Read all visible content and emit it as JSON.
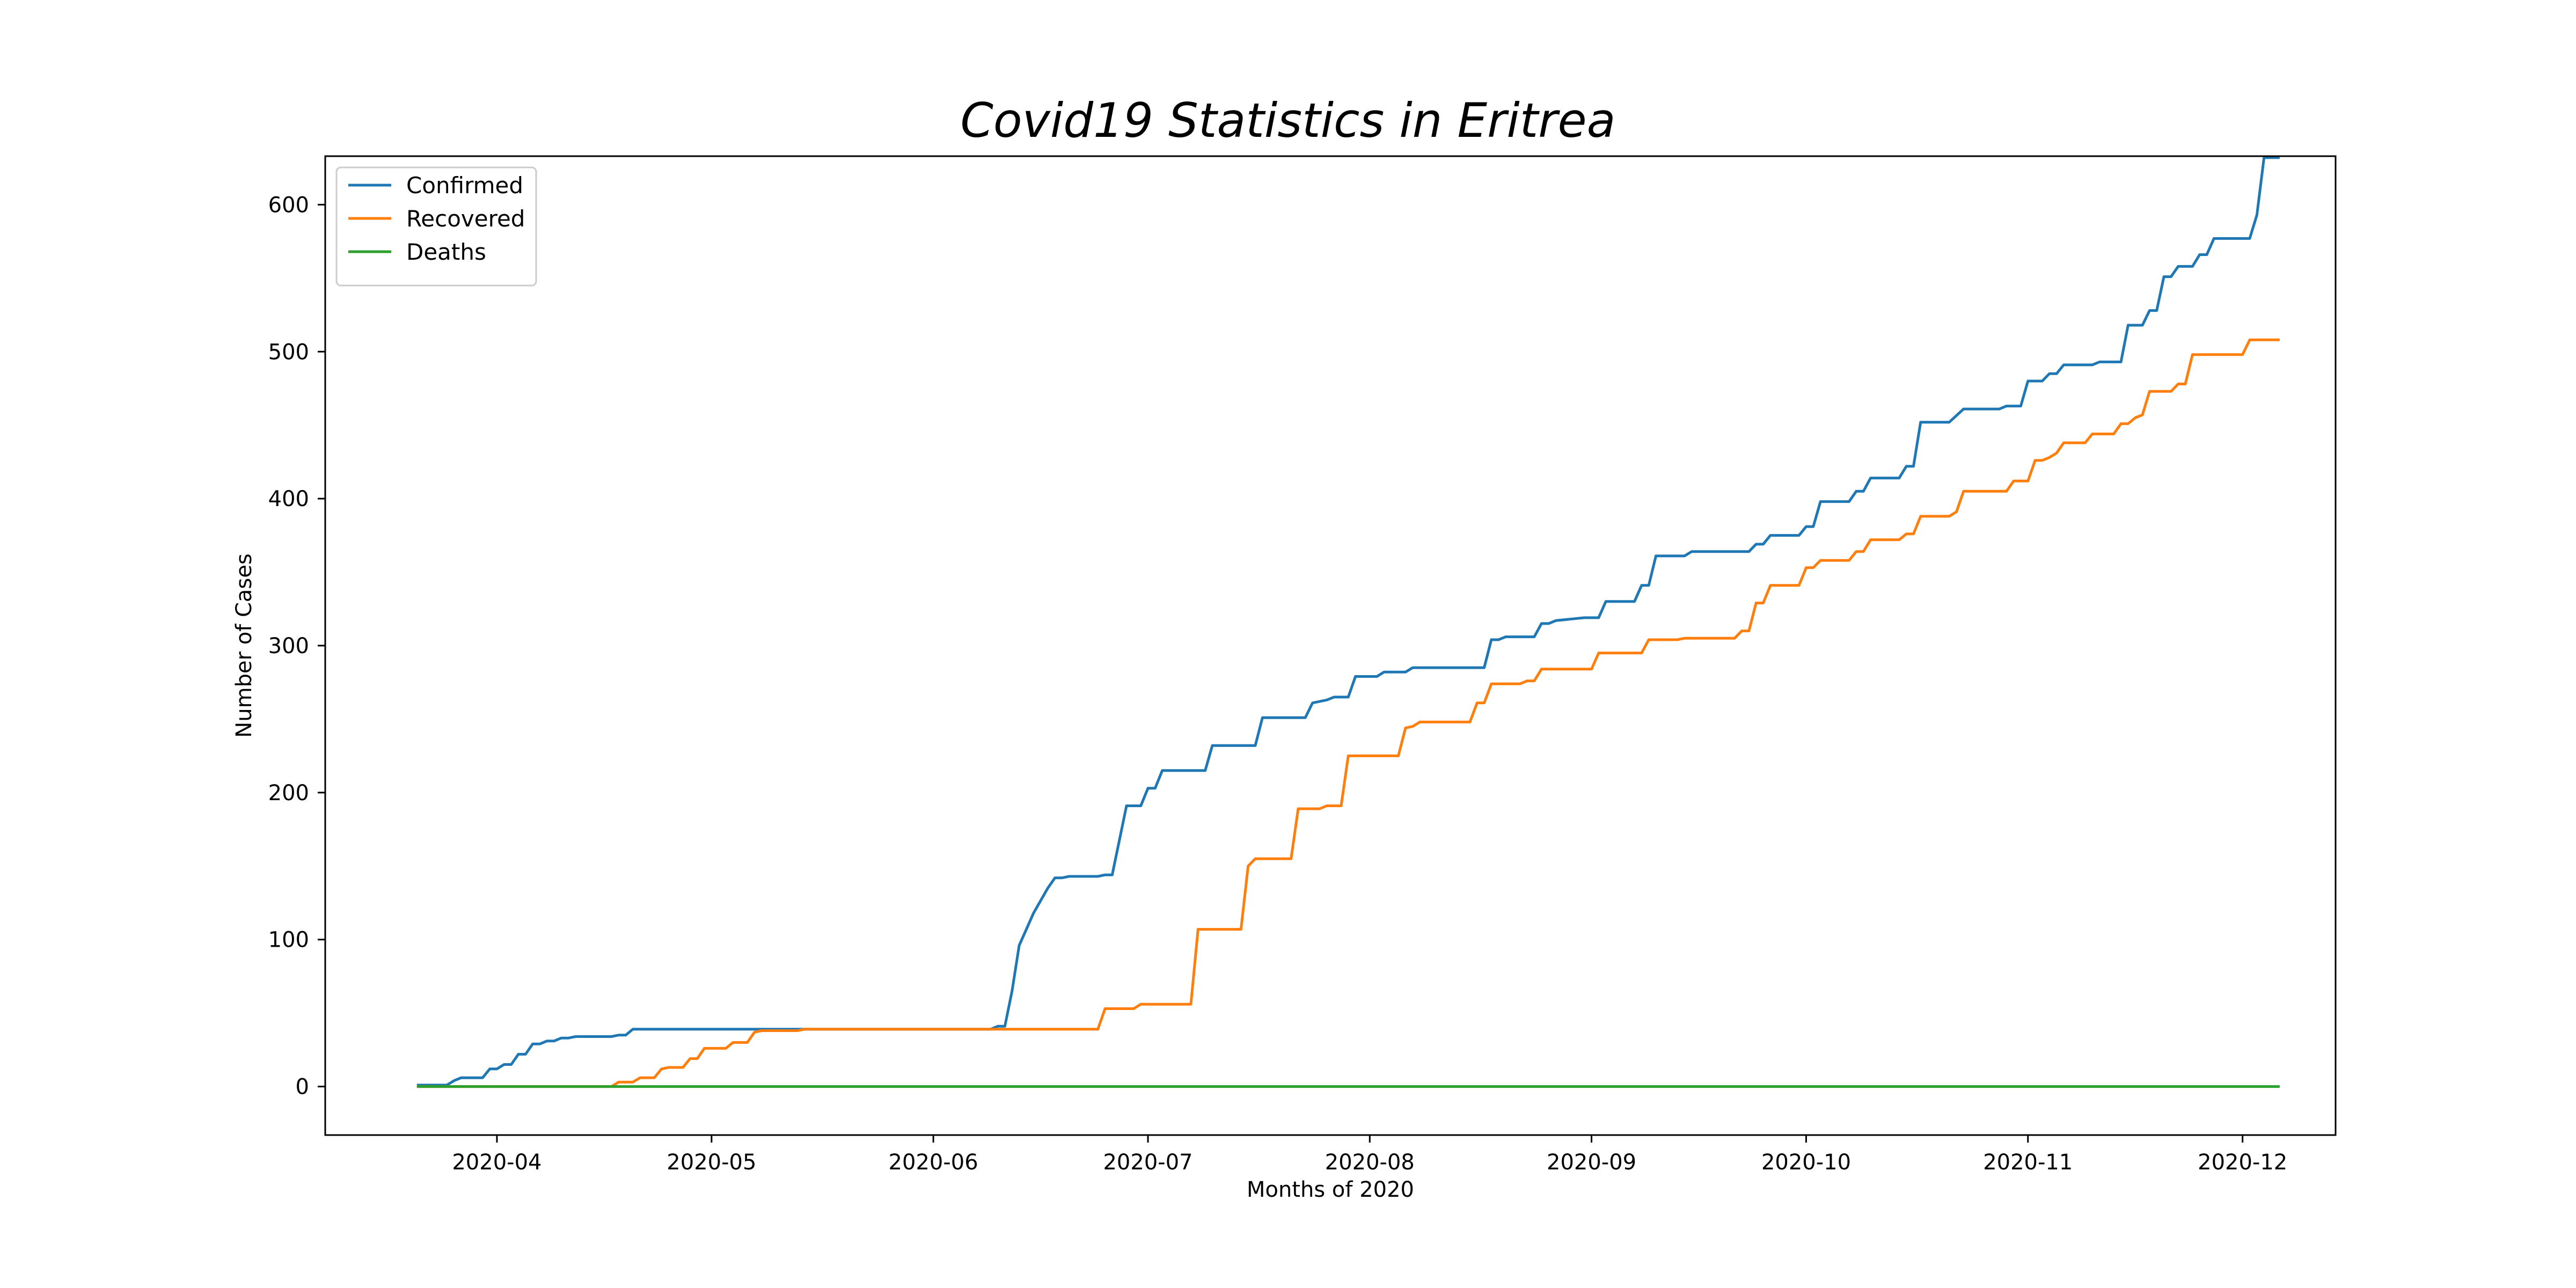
{
  "chart_data": {
    "type": "line",
    "title": "Covid19 Statistics in Eritrea",
    "xlabel": "Months of 2020",
    "ylabel": "Number of Cases",
    "ylim": [
      -33,
      633
    ],
    "xlim": [
      "2020-03-08",
      "2020-12-14"
    ],
    "grid": false,
    "legend_position": "top-left",
    "x_ticks": [
      {
        "date": "2020-04-01",
        "label": "2020-04"
      },
      {
        "date": "2020-05-01",
        "label": "2020-05"
      },
      {
        "date": "2020-06-01",
        "label": "2020-06"
      },
      {
        "date": "2020-07-01",
        "label": "2020-07"
      },
      {
        "date": "2020-08-01",
        "label": "2020-08"
      },
      {
        "date": "2020-09-01",
        "label": "2020-09"
      },
      {
        "date": "2020-10-01",
        "label": "2020-10"
      },
      {
        "date": "2020-11-01",
        "label": "2020-11"
      },
      {
        "date": "2020-12-01",
        "label": "2020-12"
      }
    ],
    "y_ticks": [
      {
        "value": 0,
        "label": "0"
      },
      {
        "value": 100,
        "label": "100"
      },
      {
        "value": 200,
        "label": "200"
      },
      {
        "value": 300,
        "label": "300"
      },
      {
        "value": 400,
        "label": "400"
      },
      {
        "value": 500,
        "label": "500"
      },
      {
        "value": 600,
        "label": "600"
      }
    ],
    "series": [
      {
        "name": "Confirmed",
        "color": "#1f77b4",
        "points": [
          [
            "2020-03-21",
            1
          ],
          [
            "2020-03-24",
            1
          ],
          [
            "2020-03-25",
            1
          ],
          [
            "2020-03-26",
            4
          ],
          [
            "2020-03-27",
            6
          ],
          [
            "2020-03-30",
            6
          ],
          [
            "2020-03-31",
            12
          ],
          [
            "2020-04-01",
            12
          ],
          [
            "2020-04-02",
            15
          ],
          [
            "2020-04-03",
            15
          ],
          [
            "2020-04-04",
            22
          ],
          [
            "2020-04-05",
            22
          ],
          [
            "2020-04-06",
            29
          ],
          [
            "2020-04-07",
            29
          ],
          [
            "2020-04-08",
            31
          ],
          [
            "2020-04-09",
            31
          ],
          [
            "2020-04-10",
            33
          ],
          [
            "2020-04-11",
            33
          ],
          [
            "2020-04-12",
            34
          ],
          [
            "2020-04-17",
            34
          ],
          [
            "2020-04-18",
            35
          ],
          [
            "2020-04-19",
            35
          ],
          [
            "2020-04-20",
            39
          ],
          [
            "2020-06-09",
            39
          ],
          [
            "2020-06-10",
            41
          ],
          [
            "2020-06-11",
            41
          ],
          [
            "2020-06-12",
            65
          ],
          [
            "2020-06-13",
            96
          ],
          [
            "2020-06-15",
            118
          ],
          [
            "2020-06-17",
            135
          ],
          [
            "2020-06-18",
            142
          ],
          [
            "2020-06-19",
            142
          ],
          [
            "2020-06-20",
            143
          ],
          [
            "2020-06-24",
            143
          ],
          [
            "2020-06-25",
            144
          ],
          [
            "2020-06-26",
            144
          ],
          [
            "2020-06-28",
            191
          ],
          [
            "2020-06-30",
            191
          ],
          [
            "2020-07-01",
            203
          ],
          [
            "2020-07-02",
            203
          ],
          [
            "2020-07-03",
            215
          ],
          [
            "2020-07-09",
            215
          ],
          [
            "2020-07-10",
            232
          ],
          [
            "2020-07-16",
            232
          ],
          [
            "2020-07-17",
            251
          ],
          [
            "2020-07-23",
            251
          ],
          [
            "2020-07-24",
            261
          ],
          [
            "2020-07-25",
            262
          ],
          [
            "2020-07-26",
            263
          ],
          [
            "2020-07-27",
            265
          ],
          [
            "2020-07-29",
            265
          ],
          [
            "2020-07-30",
            279
          ],
          [
            "2020-08-02",
            279
          ],
          [
            "2020-08-03",
            282
          ],
          [
            "2020-08-06",
            282
          ],
          [
            "2020-08-07",
            285
          ],
          [
            "2020-08-17",
            285
          ],
          [
            "2020-08-18",
            304
          ],
          [
            "2020-08-19",
            304
          ],
          [
            "2020-08-20",
            306
          ],
          [
            "2020-08-24",
            306
          ],
          [
            "2020-08-25",
            315
          ],
          [
            "2020-08-26",
            315
          ],
          [
            "2020-08-27",
            317
          ],
          [
            "2020-08-29",
            318
          ],
          [
            "2020-08-31",
            319
          ],
          [
            "2020-09-02",
            319
          ],
          [
            "2020-09-03",
            330
          ],
          [
            "2020-09-07",
            330
          ],
          [
            "2020-09-08",
            341
          ],
          [
            "2020-09-09",
            341
          ],
          [
            "2020-09-10",
            361
          ],
          [
            "2020-09-14",
            361
          ],
          [
            "2020-09-15",
            364
          ],
          [
            "2020-09-23",
            364
          ],
          [
            "2020-09-24",
            369
          ],
          [
            "2020-09-25",
            369
          ],
          [
            "2020-09-26",
            375
          ],
          [
            "2020-09-30",
            375
          ],
          [
            "2020-10-01",
            381
          ],
          [
            "2020-10-02",
            381
          ],
          [
            "2020-10-03",
            398
          ],
          [
            "2020-10-07",
            398
          ],
          [
            "2020-10-08",
            405
          ],
          [
            "2020-10-09",
            405
          ],
          [
            "2020-10-10",
            414
          ],
          [
            "2020-10-14",
            414
          ],
          [
            "2020-10-15",
            422
          ],
          [
            "2020-10-16",
            422
          ],
          [
            "2020-10-17",
            452
          ],
          [
            "2020-10-21",
            452
          ],
          [
            "2020-10-23",
            461
          ],
          [
            "2020-10-28",
            461
          ],
          [
            "2020-10-29",
            463
          ],
          [
            "2020-10-31",
            463
          ],
          [
            "2020-11-01",
            480
          ],
          [
            "2020-11-03",
            480
          ],
          [
            "2020-11-04",
            485
          ],
          [
            "2020-11-05",
            485
          ],
          [
            "2020-11-06",
            491
          ],
          [
            "2020-11-10",
            491
          ],
          [
            "2020-11-11",
            493
          ],
          [
            "2020-11-14",
            493
          ],
          [
            "2020-11-15",
            518
          ],
          [
            "2020-11-17",
            518
          ],
          [
            "2020-11-18",
            528
          ],
          [
            "2020-11-19",
            528
          ],
          [
            "2020-11-20",
            551
          ],
          [
            "2020-11-21",
            551
          ],
          [
            "2020-11-22",
            558
          ],
          [
            "2020-11-24",
            558
          ],
          [
            "2020-11-25",
            566
          ],
          [
            "2020-11-26",
            566
          ],
          [
            "2020-11-27",
            577
          ],
          [
            "2020-12-02",
            577
          ],
          [
            "2020-12-03",
            593
          ],
          [
            "2020-12-04",
            632
          ],
          [
            "2020-12-06",
            632
          ]
        ]
      },
      {
        "name": "Recovered",
        "color": "#ff7f0e",
        "points": [
          [
            "2020-03-21",
            0
          ],
          [
            "2020-04-17",
            0
          ],
          [
            "2020-04-18",
            3
          ],
          [
            "2020-04-20",
            3
          ],
          [
            "2020-04-21",
            6
          ],
          [
            "2020-04-23",
            6
          ],
          [
            "2020-04-24",
            12
          ],
          [
            "2020-04-25",
            13
          ],
          [
            "2020-04-27",
            13
          ],
          [
            "2020-04-28",
            19
          ],
          [
            "2020-04-29",
            19
          ],
          [
            "2020-04-30",
            26
          ],
          [
            "2020-05-03",
            26
          ],
          [
            "2020-05-04",
            30
          ],
          [
            "2020-05-06",
            30
          ],
          [
            "2020-05-07",
            37
          ],
          [
            "2020-05-08",
            38
          ],
          [
            "2020-05-13",
            38
          ],
          [
            "2020-05-14",
            39
          ],
          [
            "2020-06-24",
            39
          ],
          [
            "2020-06-25",
            53
          ],
          [
            "2020-06-29",
            53
          ],
          [
            "2020-06-30",
            56
          ],
          [
            "2020-07-07",
            56
          ],
          [
            "2020-07-08",
            107
          ],
          [
            "2020-07-14",
            107
          ],
          [
            "2020-07-15",
            150
          ],
          [
            "2020-07-16",
            155
          ],
          [
            "2020-07-21",
            155
          ],
          [
            "2020-07-22",
            189
          ],
          [
            "2020-07-25",
            189
          ],
          [
            "2020-07-26",
            191
          ],
          [
            "2020-07-28",
            191
          ],
          [
            "2020-07-29",
            225
          ],
          [
            "2020-08-05",
            225
          ],
          [
            "2020-08-06",
            244
          ],
          [
            "2020-08-07",
            245
          ],
          [
            "2020-08-08",
            248
          ],
          [
            "2020-08-15",
            248
          ],
          [
            "2020-08-16",
            261
          ],
          [
            "2020-08-17",
            261
          ],
          [
            "2020-08-18",
            274
          ],
          [
            "2020-08-22",
            274
          ],
          [
            "2020-08-23",
            276
          ],
          [
            "2020-08-24",
            276
          ],
          [
            "2020-08-25",
            284
          ],
          [
            "2020-09-01",
            284
          ],
          [
            "2020-09-02",
            295
          ],
          [
            "2020-09-08",
            295
          ],
          [
            "2020-09-09",
            304
          ],
          [
            "2020-09-13",
            304
          ],
          [
            "2020-09-14",
            305
          ],
          [
            "2020-09-21",
            305
          ],
          [
            "2020-09-22",
            310
          ],
          [
            "2020-09-23",
            310
          ],
          [
            "2020-09-24",
            329
          ],
          [
            "2020-09-25",
            329
          ],
          [
            "2020-09-26",
            341
          ],
          [
            "2020-09-30",
            341
          ],
          [
            "2020-10-01",
            353
          ],
          [
            "2020-10-02",
            353
          ],
          [
            "2020-10-03",
            358
          ],
          [
            "2020-10-07",
            358
          ],
          [
            "2020-10-08",
            364
          ],
          [
            "2020-10-09",
            364
          ],
          [
            "2020-10-10",
            372
          ],
          [
            "2020-10-14",
            372
          ],
          [
            "2020-10-15",
            376
          ],
          [
            "2020-10-16",
            376
          ],
          [
            "2020-10-17",
            388
          ],
          [
            "2020-10-21",
            388
          ],
          [
            "2020-10-22",
            391
          ],
          [
            "2020-10-23",
            405
          ],
          [
            "2020-10-29",
            405
          ],
          [
            "2020-10-30",
            412
          ],
          [
            "2020-11-01",
            412
          ],
          [
            "2020-11-02",
            426
          ],
          [
            "2020-11-03",
            426
          ],
          [
            "2020-11-04",
            428
          ],
          [
            "2020-11-05",
            431
          ],
          [
            "2020-11-06",
            438
          ],
          [
            "2020-11-09",
            438
          ],
          [
            "2020-11-10",
            444
          ],
          [
            "2020-11-13",
            444
          ],
          [
            "2020-11-14",
            451
          ],
          [
            "2020-11-15",
            451
          ],
          [
            "2020-11-16",
            455
          ],
          [
            "2020-11-17",
            457
          ],
          [
            "2020-11-18",
            473
          ],
          [
            "2020-11-21",
            473
          ],
          [
            "2020-11-22",
            478
          ],
          [
            "2020-11-23",
            478
          ],
          [
            "2020-11-24",
            498
          ],
          [
            "2020-11-30",
            498
          ],
          [
            "2020-12-01",
            498
          ],
          [
            "2020-12-02",
            508
          ],
          [
            "2020-12-06",
            508
          ]
        ]
      },
      {
        "name": "Deaths",
        "color": "#2ca02c",
        "points": [
          [
            "2020-03-21",
            0
          ],
          [
            "2020-12-06",
            0
          ]
        ]
      }
    ]
  }
}
